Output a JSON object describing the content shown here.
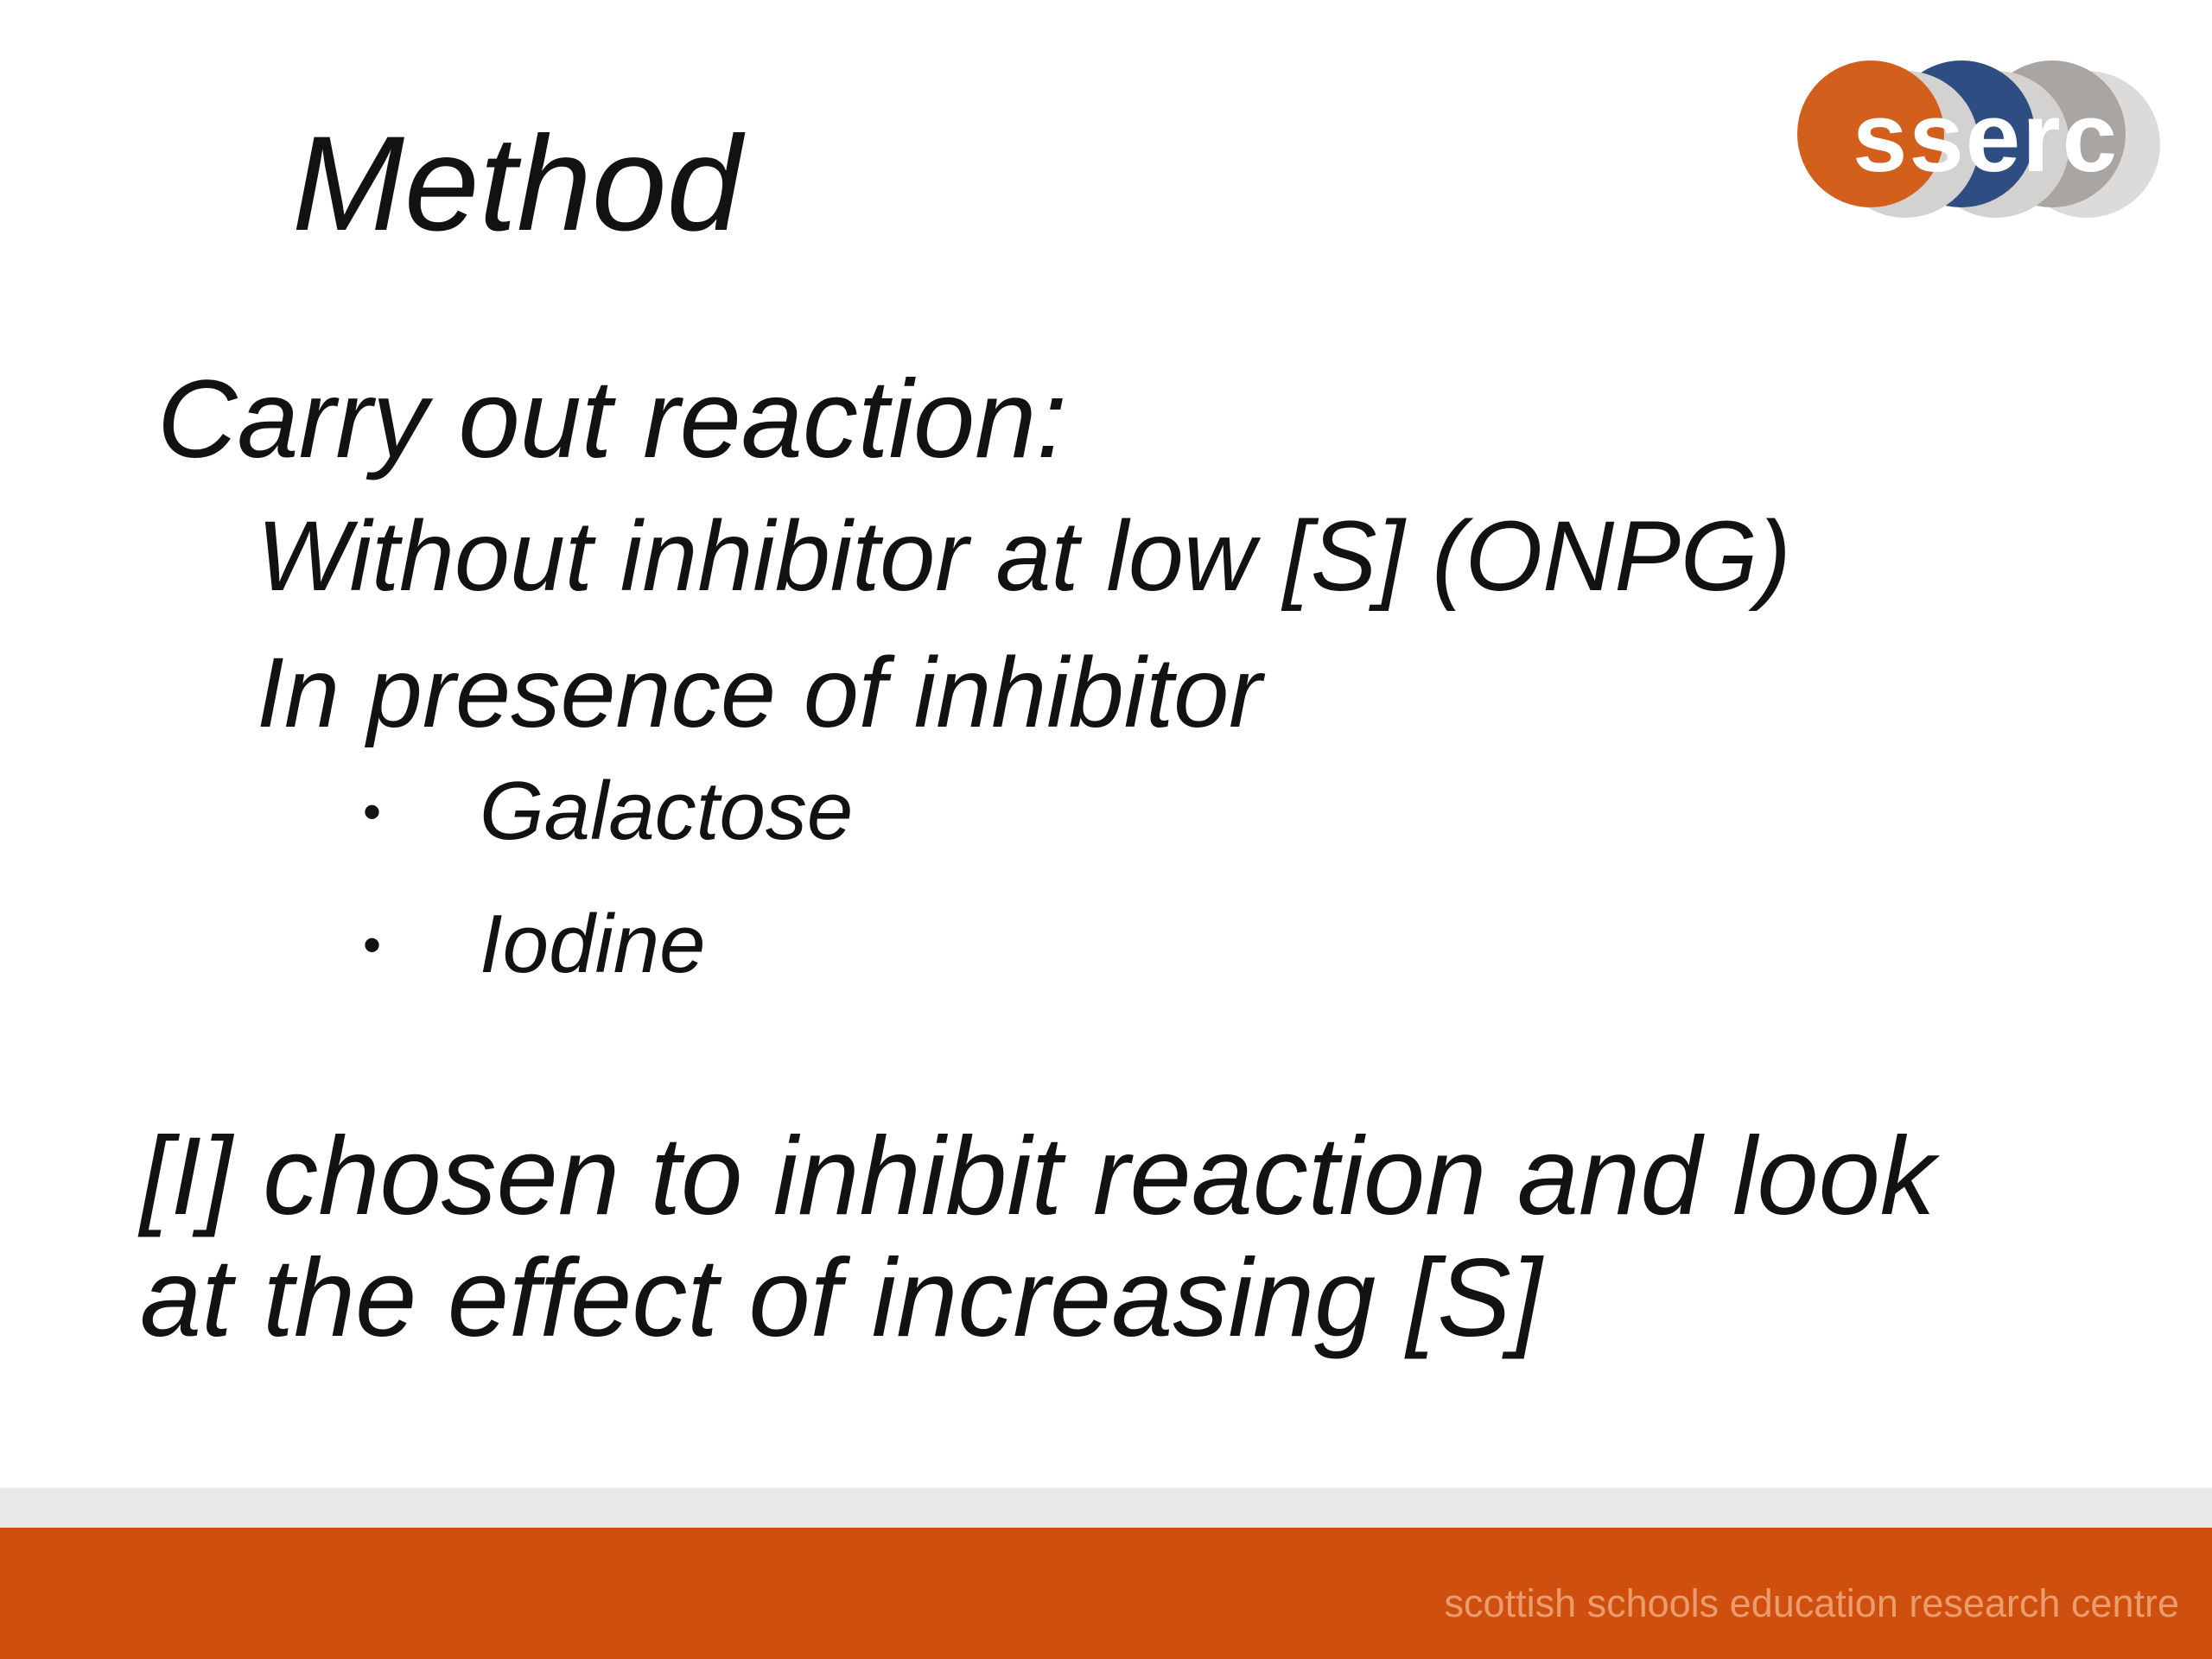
{
  "slide": {
    "title": "Method",
    "body": {
      "intro": "Carry out reaction:",
      "sub_items": [
        "Without inhibitor at low [S] (ONPG)",
        "In presence of inhibitor"
      ],
      "bullet_glyph": "•",
      "bullets": [
        "Galactose",
        "Iodine"
      ],
      "conclusion": "[I] chosen to inhibit reaction and look at the effect of increasing [S]"
    },
    "logo": {
      "text": "sserc",
      "colors": {
        "orange_circle": "#d2601c",
        "blue_circle": "#2e4d82",
        "gray_circle": "#a8a5a2",
        "echo_circle": "#d4d2d1",
        "echo_circle_light": "#dcdbda",
        "text": "#ffffff"
      }
    },
    "footer": {
      "caption": "scottish schools education research centre",
      "orange_bar_color": "#cf4f0e",
      "gray_bar_color": "#e9e8e7",
      "caption_color": "#eb9c6d"
    },
    "text_color": "#121212",
    "background_color": "#ffffff"
  }
}
